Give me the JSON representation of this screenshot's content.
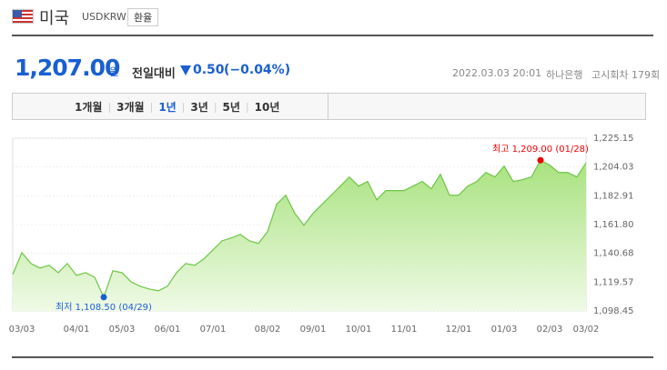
{
  "header": {
    "country": "미국",
    "code": "USDKRW",
    "button": "환율"
  },
  "price": {
    "value": "1,207.00",
    "unit": "원",
    "change_label": "전일대비",
    "change": "0.50",
    "change_pct": "(−0.04%)",
    "datetime": "2022.03.03 20:01",
    "bank": "하나은행",
    "round": "고시회차 179회"
  },
  "tabs": [
    "1개월",
    "3개월",
    "1년",
    "3년",
    "5년",
    "10년"
  ],
  "active_tab": "1년",
  "chart_data": {
    "type": "area",
    "color": "#6cc644",
    "categories": [
      null,
      "03/03",
      null,
      null,
      null,
      null,
      null,
      "04/01",
      null,
      null,
      null,
      null,
      "05/03",
      null,
      null,
      null,
      null,
      "06/01",
      null,
      null,
      null,
      null,
      "07/01",
      null,
      null,
      null,
      null,
      null,
      "08/02",
      null,
      null,
      null,
      null,
      "09/01",
      null,
      null,
      null,
      null,
      "10/01",
      null,
      null,
      null,
      null,
      "11/01",
      null,
      null,
      null,
      null,
      null,
      "12/01",
      null,
      null,
      null,
      null,
      "01/03",
      null,
      null,
      null,
      null,
      "02/03",
      null,
      null,
      null,
      "03/02"
    ],
    "values": [
      1125.2,
      1141.2,
      1133.2,
      1129.9,
      1131.9,
      1126.5,
      1133.2,
      1124.5,
      1126.5,
      1123.2,
      1108.5,
      1127.9,
      1126.5,
      1119.8,
      1116.5,
      1114.5,
      1113.2,
      1116.5,
      1126.5,
      1133.2,
      1131.9,
      1136.6,
      1143.2,
      1149.9,
      1151.9,
      1154.6,
      1149.9,
      1147.9,
      1156.6,
      1176.7,
      1183.3,
      1170.0,
      1161.3,
      1170.0,
      1176.7,
      1183.3,
      1190.0,
      1196.7,
      1190.0,
      1193.4,
      1180.0,
      1186.7,
      1186.7,
      1186.7,
      1190.0,
      1193.4,
      1188.0,
      1198.7,
      1183.3,
      1183.3,
      1190.0,
      1193.4,
      1200.0,
      1196.7,
      1204.7,
      1193.4,
      1194.7,
      1196.7,
      1209.0,
      1205.4,
      1200.0,
      1200.0,
      1196.7,
      1207.0
    ],
    "ylim": [
      1098.45,
      1225.15
    ],
    "yticks": [
      {
        "value": 1225.15,
        "label": "1,225.15"
      },
      {
        "value": 1204.03,
        "label": "1,204.03"
      },
      {
        "value": 1182.91,
        "label": "1,182.91"
      },
      {
        "value": 1161.8,
        "label": "1,161.80"
      },
      {
        "value": 1140.68,
        "label": "1,140.68"
      },
      {
        "value": 1119.57,
        "label": "1,119.57"
      },
      {
        "value": 1098.45,
        "label": "1,098.45"
      }
    ],
    "grid": true,
    "high_label": "최고 1,209.00 (01/28)",
    "low_label": "최저 1,108.50 (04/29)"
  }
}
